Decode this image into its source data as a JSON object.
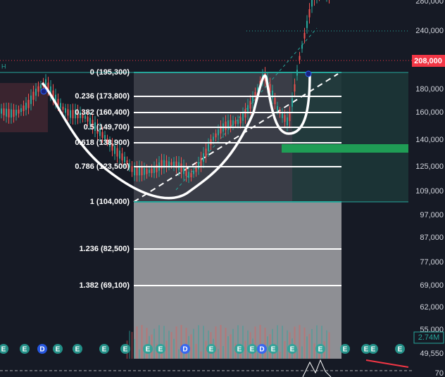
{
  "price_axis": {
    "labels": [
      "280,000",
      "240,000",
      "180,000",
      "160,000",
      "140,000",
      "125,000",
      "109,000",
      "97,000",
      "87,000",
      "77,000",
      "69,000",
      "62,000",
      "55,000",
      "49,550",
      "70"
    ],
    "last_price": "208,000",
    "volume": "2.74M"
  },
  "fib_levels": [
    "0 (195,300)",
    "0.236 (173,800)",
    "0.382 (160,400)",
    "0.5 (149,700)",
    "0.618 (138,900)",
    "0.786 (123,500)",
    "1 (104,000)",
    "1.236 (82,500)",
    "1.382 (69,100)"
  ],
  "events": [
    "E",
    "E",
    "D",
    "E",
    "E",
    "E",
    "E",
    "E",
    "E",
    "D",
    "E",
    "E",
    "E",
    "D",
    "E",
    "E",
    "E",
    "E",
    "E",
    "E",
    "E",
    "E"
  ],
  "corner_label": "H"
}
